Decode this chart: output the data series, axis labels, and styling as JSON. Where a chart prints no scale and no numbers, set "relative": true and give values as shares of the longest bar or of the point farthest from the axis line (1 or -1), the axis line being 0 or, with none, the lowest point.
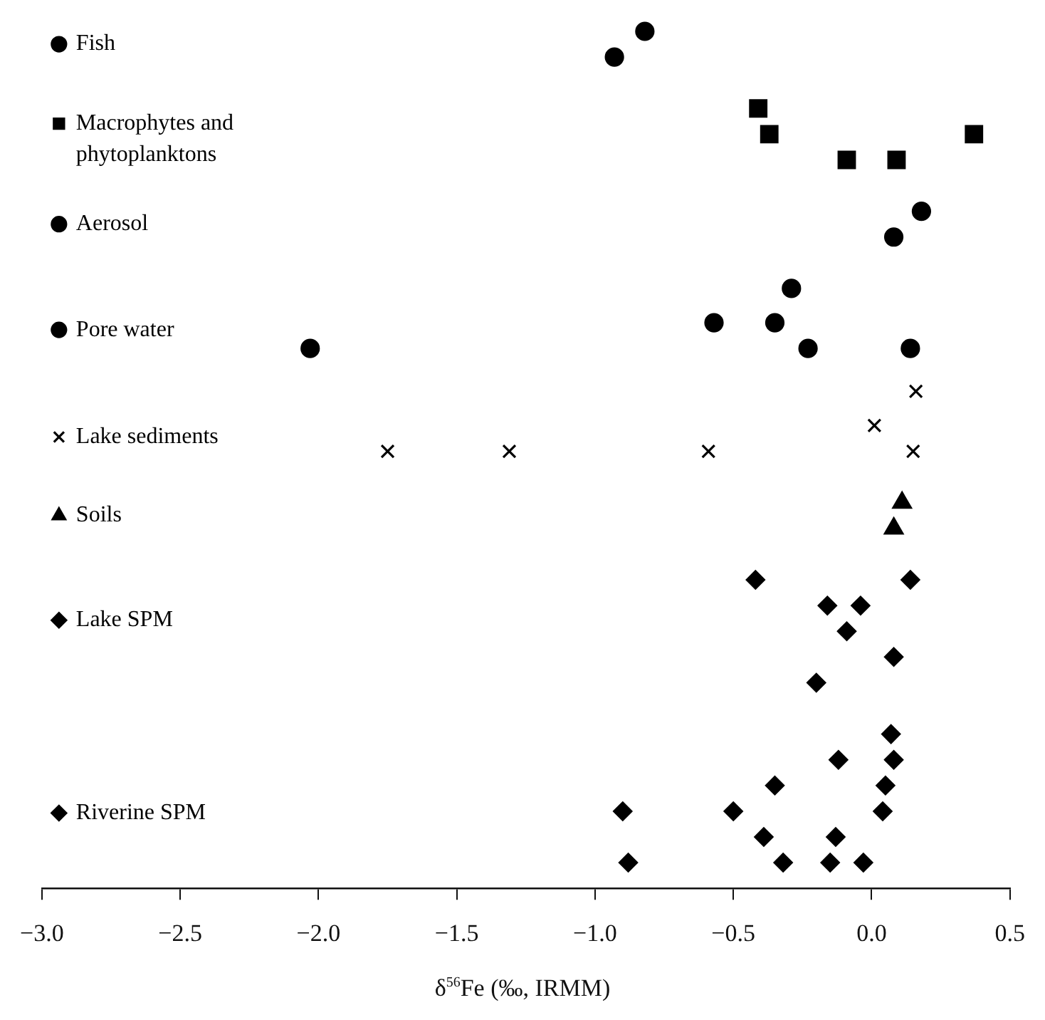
{
  "chart_data": {
    "type": "scatter",
    "relative": true,
    "xlabel": "δ$^{56}$Fe (‰, IRMM)",
    "xlim": [
      -3.0,
      0.5
    ],
    "xticks": [
      {
        "value": -3.0,
        "label": "−3.0"
      },
      {
        "value": -2.5,
        "label": "−2.5"
      },
      {
        "value": -2.0,
        "label": "−2.0"
      },
      {
        "value": -1.5,
        "label": "−1.5"
      },
      {
        "value": -1.0,
        "label": "−1.0"
      },
      {
        "value": -0.5,
        "label": "−0.5"
      },
      {
        "value": 0.0,
        "label": "0.0"
      },
      {
        "value": 0.5,
        "label": "0.5"
      }
    ],
    "grid": false,
    "legend": "left",
    "series": [
      {
        "name": "Fish",
        "color": "#000000",
        "marker": "circle",
        "x": [
          -0.82,
          -0.93
        ],
        "values": [
          1.0,
          0.97
        ]
      },
      {
        "name": "Macrophytes and phytoplanktons",
        "color": "#000000",
        "marker": "square",
        "x": [
          -0.41,
          -0.37,
          -0.09,
          0.09,
          0.37
        ],
        "values": [
          0.91,
          0.88,
          0.85,
          0.85,
          0.88
        ]
      },
      {
        "name": "Aerosol",
        "color": "#000000",
        "marker": "circle",
        "x": [
          0.18,
          0.08
        ],
        "values": [
          0.79,
          0.76
        ]
      },
      {
        "name": "Pore water",
        "color": "#000000",
        "marker": "circle",
        "x": [
          -2.03,
          -0.57,
          -0.35,
          -0.29,
          -0.23,
          0.14
        ],
        "values": [
          0.63,
          0.66,
          0.66,
          0.7,
          0.63,
          0.63
        ]
      },
      {
        "name": "Lake sediments",
        "color": "#000000",
        "marker": "cross",
        "x": [
          -1.75,
          -1.31,
          -0.59,
          0.01,
          0.16,
          0.15
        ],
        "values": [
          0.51,
          0.51,
          0.51,
          0.54,
          0.58,
          0.51
        ]
      },
      {
        "name": "Soils",
        "color": "#000000",
        "marker": "triangle",
        "x": [
          0.11,
          0.08
        ],
        "values": [
          0.45,
          0.42
        ]
      },
      {
        "name": "Lake SPM",
        "color": "#000000",
        "marker": "diamond",
        "x": [
          -0.42,
          0.14,
          -0.16,
          -0.04,
          -0.09,
          0.08,
          -0.2
        ],
        "values": [
          0.36,
          0.36,
          0.33,
          0.33,
          0.3,
          0.27,
          0.24
        ]
      },
      {
        "name": "Riverine SPM",
        "color": "#000000",
        "marker": "diamond",
        "x": [
          0.07,
          -0.12,
          0.08,
          -0.35,
          0.05,
          -0.9,
          -0.5,
          0.04,
          -0.88,
          -0.39,
          -0.32,
          -0.15,
          -0.13,
          -0.03
        ],
        "values": [
          0.18,
          0.15,
          0.15,
          0.12,
          0.12,
          0.09,
          0.09,
          0.09,
          0.03,
          0.06,
          0.03,
          0.03,
          0.06,
          0.03
        ]
      }
    ]
  }
}
